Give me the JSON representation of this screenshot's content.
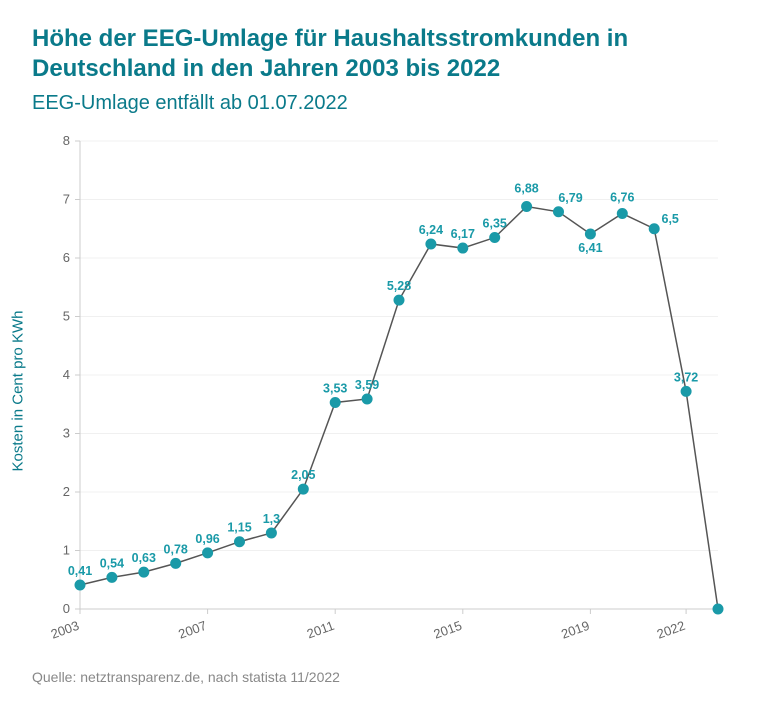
{
  "title": "Höhe der EEG-Umlage für Haushaltsstromkunden in Deutschland in den Jahren 2003 bis 2022",
  "subtitle": "EEG-Umlage entfällt ab 01.07.2022",
  "y_axis_label": "Kosten in Cent pro KWh",
  "source": "Quelle: netztransparenz.de, nach statista 11/2022",
  "chart": {
    "type": "line",
    "ylim": [
      0,
      8
    ],
    "ytick_step": 1,
    "x_years": [
      2003,
      2004,
      2005,
      2006,
      2007,
      2008,
      2009,
      2010,
      2011,
      2012,
      2013,
      2014,
      2015,
      2016,
      2017,
      2018,
      2019,
      2020,
      2021,
      2022,
      2023
    ],
    "x_tick_years": [
      2003,
      2007,
      2011,
      2015,
      2019,
      2022
    ],
    "values": [
      0.41,
      0.54,
      0.63,
      0.78,
      0.96,
      1.15,
      1.3,
      2.05,
      3.53,
      3.59,
      5.28,
      6.24,
      6.17,
      6.35,
      6.88,
      6.79,
      6.41,
      6.76,
      6.5,
      3.72,
      0
    ],
    "data_labels": [
      "0,41",
      "0,54",
      "0,63",
      "0,78",
      "0,96",
      "1,15",
      "1,3",
      "2,05",
      "3,53",
      "3,59",
      "5,28",
      "6,24",
      "6,17",
      "6,35",
      "6,88",
      "6,79",
      "6,41",
      "6,76",
      "6,5",
      "3,72",
      ""
    ],
    "line_color": "#555555",
    "marker_color": "#1a9aa8",
    "marker_radius": 5,
    "label_color": "#1a9aa8",
    "label_fontsize": 12.5,
    "title_color": "#0a7a8a",
    "title_fontsize": 24,
    "subtitle_fontsize": 20,
    "grid_color": "#f0f0f0",
    "axis_color": "#cccccc",
    "tick_color": "#666666",
    "background_color": "#ffffff",
    "line_width": 1.5,
    "label_offsets": {
      "2017": {
        "dx": 0,
        "dy": -14
      },
      "2018": {
        "dx": 12,
        "dy": -10
      },
      "2019": {
        "dx": 0,
        "dy": 18
      },
      "2020": {
        "dx": 0,
        "dy": -12
      },
      "2021": {
        "dx": 16,
        "dy": -6
      }
    }
  }
}
